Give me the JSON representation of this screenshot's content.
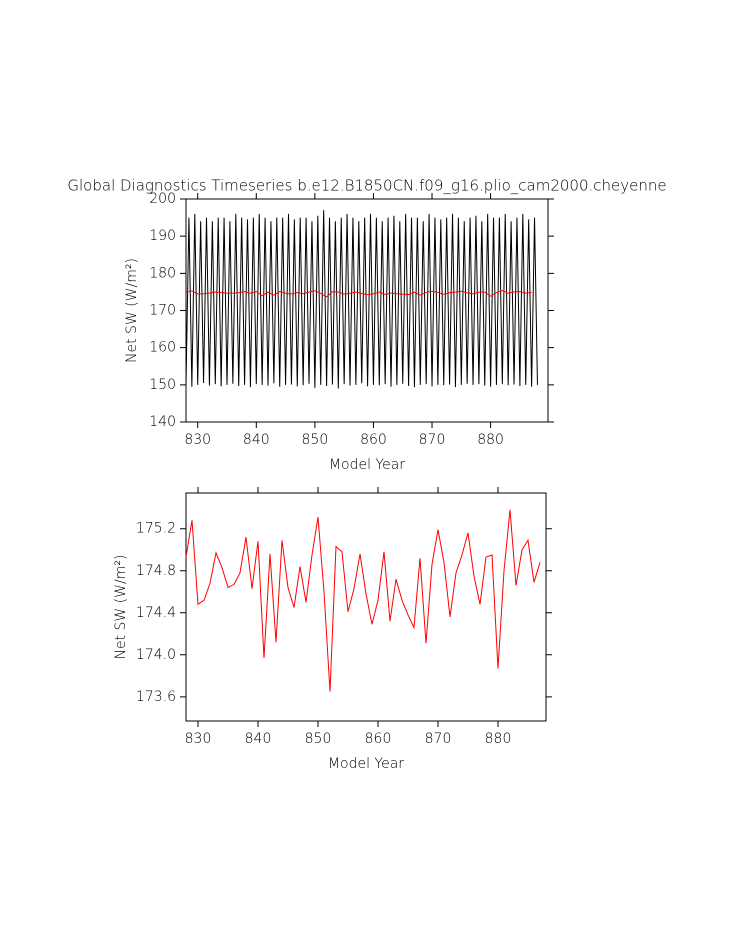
{
  "chart_data": [
    {
      "type": "line",
      "title": "Global Diagnostics Timeseries b.e12.B1850CN.f09_g16.plio_cam2000.cheyenne",
      "xlabel": "Model Year",
      "ylabel": "Net SW (W/m²)",
      "xlim": [
        828,
        889.8
      ],
      "ylim": [
        140,
        200
      ],
      "xticks": [
        830,
        840,
        850,
        860,
        870,
        880
      ],
      "yticks": [
        140,
        150,
        160,
        170,
        180,
        190,
        200
      ],
      "series": [
        {
          "color": "#000000",
          "x": [
            828,
            828.5,
            829,
            829.5,
            830,
            830.5,
            831,
            831.5,
            832,
            832.5,
            833,
            833.5,
            834,
            834.5,
            835,
            835.5,
            836,
            836.5,
            837,
            837.5,
            838,
            838.5,
            839,
            839.5,
            840,
            840.5,
            841,
            841.5,
            842,
            842.5,
            843,
            843.5,
            844,
            844.5,
            845,
            845.5,
            846,
            846.5,
            847,
            847.5,
            848,
            848.5,
            849,
            849.5,
            850,
            850.5,
            851,
            851.5,
            852,
            852.5,
            853,
            853.5,
            854,
            854.5,
            855,
            855.5,
            856,
            856.5,
            857,
            857.5,
            858,
            858.5,
            859,
            859.5,
            860,
            860.5,
            861,
            861.5,
            862,
            862.5,
            863,
            863.5,
            864,
            864.5,
            865,
            865.5,
            866,
            866.5,
            867,
            867.5,
            868,
            868.5,
            869,
            869.5,
            870,
            870.5,
            871,
            871.5,
            872,
            872.5,
            873,
            873.5,
            874,
            874.5,
            875,
            875.5,
            876,
            876.5,
            877,
            877.5,
            878,
            878.5,
            879,
            879.5,
            880,
            880.5,
            881,
            881.5,
            882,
            882.5,
            883,
            883.5,
            884,
            884.5,
            885,
            885.5,
            886,
            886.5,
            887,
            887.5,
            888
          ],
          "values": [
            150,
            195,
            149.5,
            196,
            150,
            194,
            150.5,
            195,
            149.8,
            194,
            150.2,
            195,
            149.6,
            195,
            150,
            194,
            150.3,
            196,
            149.7,
            195,
            150,
            194.5,
            149.4,
            195,
            150.2,
            196,
            150,
            195,
            149.8,
            194,
            150.4,
            195,
            149.5,
            195,
            150,
            196,
            150.1,
            194.5,
            149.6,
            195,
            149.9,
            195,
            150.3,
            194,
            149.2,
            195.5,
            150,
            197,
            149.7,
            195,
            150.1,
            194,
            149,
            195,
            150.2,
            196,
            149.8,
            195,
            150,
            194,
            150.4,
            195,
            149.6,
            196,
            150,
            195,
            149.9,
            194,
            150.2,
            195,
            149.5,
            195.5,
            150,
            194,
            150.3,
            196,
            149.7,
            195,
            149.4,
            195,
            150,
            194,
            150.2,
            196,
            149.6,
            195,
            150,
            194.5,
            149.9,
            195,
            150.1,
            196,
            149.4,
            195,
            150,
            194,
            150.3,
            195,
            150,
            195.5,
            150.2,
            194,
            149.8,
            196,
            149.5,
            195,
            150,
            195,
            150.2,
            196,
            149.9,
            194,
            150.1,
            195,
            149.7,
            196,
            150,
            194.5,
            149.5,
            195,
            150
          ]
        },
        {
          "color": "#ff0000",
          "x": [
            828,
            829,
            830,
            831,
            832,
            833,
            834,
            835,
            836,
            837,
            838,
            839,
            840,
            841,
            842,
            843,
            844,
            845,
            846,
            847,
            848,
            849,
            850,
            851,
            852,
            853,
            854,
            855,
            856,
            857,
            858,
            859,
            860,
            861,
            862,
            863,
            864,
            865,
            866,
            867,
            868,
            869,
            870,
            871,
            872,
            873,
            874,
            875,
            876,
            877,
            878,
            879,
            880,
            881,
            882,
            883,
            884,
            885,
            886,
            887
          ],
          "values": [
            174.93,
            175.28,
            174.48,
            174.52,
            174.68,
            174.97,
            174.83,
            174.64,
            174.67,
            174.78,
            175.12,
            174.63,
            175.08,
            173.97,
            174.96,
            174.12,
            175.09,
            174.64,
            174.45,
            174.84,
            174.5,
            174.95,
            175.31,
            174.6,
            173.65,
            175.03,
            174.98,
            174.41,
            174.63,
            174.96,
            174.58,
            174.29,
            174.52,
            174.98,
            174.32,
            174.72,
            174.52,
            174.38,
            174.26,
            174.92,
            174.11,
            174.86,
            175.19,
            174.88,
            174.36,
            174.78,
            174.95,
            175.16,
            174.75,
            174.48,
            174.93,
            174.95,
            173.87,
            174.8,
            175.38,
            174.66,
            175,
            175.09,
            174.69,
            174.88
          ]
        }
      ]
    },
    {
      "type": "line",
      "xlabel": "Model Year",
      "ylabel": "Net SW (W/m²)",
      "xlim": [
        828,
        888
      ],
      "ylim": [
        173.37,
        175.54
      ],
      "xticks": [
        830,
        840,
        850,
        860,
        870,
        880
      ],
      "yticks": [
        173.6,
        {
          "value": 174,
          "label": "174.0"
        },
        174.4,
        174.8,
        175.2
      ],
      "series": [
        {
          "color": "#ff0000",
          "x": [
            828,
            829,
            830,
            831,
            832,
            833,
            834,
            835,
            836,
            837,
            838,
            839,
            840,
            841,
            842,
            843,
            844,
            845,
            846,
            847,
            848,
            849,
            850,
            851,
            852,
            853,
            854,
            855,
            856,
            857,
            858,
            859,
            860,
            861,
            862,
            863,
            864,
            865,
            866,
            867,
            868,
            869,
            870,
            871,
            872,
            873,
            874,
            875,
            876,
            877,
            878,
            879,
            880,
            881,
            882,
            883,
            884,
            885,
            886,
            887
          ],
          "values": [
            174.93,
            175.28,
            174.48,
            174.52,
            174.68,
            174.97,
            174.83,
            174.64,
            174.67,
            174.78,
            175.12,
            174.63,
            175.08,
            173.97,
            174.96,
            174.12,
            175.09,
            174.64,
            174.45,
            174.84,
            174.5,
            174.95,
            175.31,
            174.6,
            173.65,
            175.03,
            174.98,
            174.41,
            174.63,
            174.96,
            174.58,
            174.29,
            174.52,
            174.98,
            174.32,
            174.72,
            174.52,
            174.38,
            174.26,
            174.92,
            174.11,
            174.86,
            175.19,
            174.88,
            174.36,
            174.78,
            174.95,
            175.16,
            174.75,
            174.48,
            174.93,
            174.95,
            173.87,
            174.8,
            175.38,
            174.66,
            175,
            175.09,
            174.69,
            174.88
          ]
        }
      ]
    }
  ]
}
